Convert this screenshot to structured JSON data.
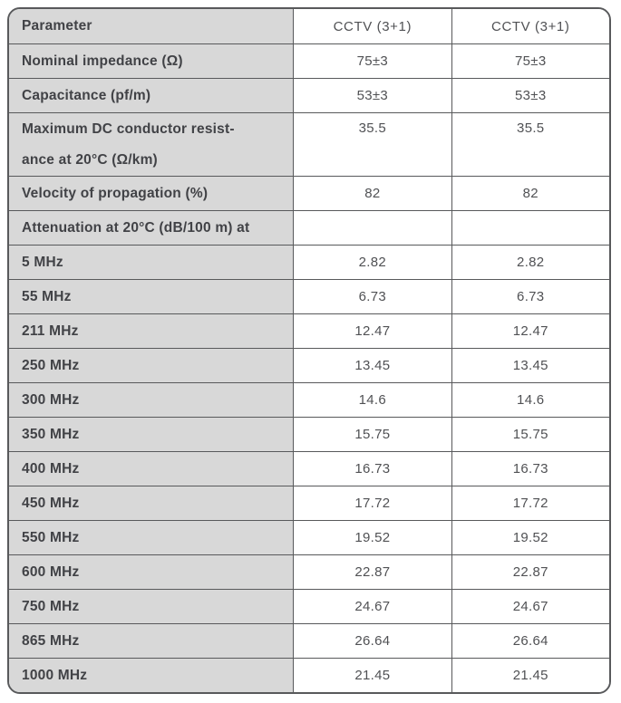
{
  "colors": {
    "border": "#58595b",
    "cell-gray": "#d8d8d8",
    "label-text": "#414246",
    "value-text": "#505154",
    "page-bg": "#ffffff"
  },
  "table": {
    "header": {
      "param": "Parameter",
      "col1": "CCTV (3+1)",
      "col2": "CCTV (3+1)"
    },
    "rows": [
      {
        "param": "Nominal impedance (Ω)",
        "values": [
          "75±3",
          "75±3"
        ],
        "tall": false
      },
      {
        "param": "Capacitance (pf/m)",
        "values": [
          "53±3",
          "53±3"
        ],
        "tall": false
      },
      {
        "param": "Maximum DC conductor resist-\nance at 20°C (Ω/km)",
        "values": [
          "35.5",
          "35.5"
        ],
        "tall": true
      },
      {
        "param": "Velocity of propagation (%)",
        "values": [
          "82",
          "82"
        ],
        "tall": false
      },
      {
        "param": "Attenuation at 20°C (dB/100 m) at",
        "values": [
          "",
          ""
        ],
        "tall": false
      },
      {
        "param": "5 MHz",
        "values": [
          "2.82",
          "2.82"
        ],
        "tall": false
      },
      {
        "param": "55 MHz",
        "values": [
          "6.73",
          "6.73"
        ],
        "tall": false
      },
      {
        "param": "211 MHz",
        "values": [
          "12.47",
          "12.47"
        ],
        "tall": false
      },
      {
        "param": "250 MHz",
        "values": [
          "13.45",
          "13.45"
        ],
        "tall": false
      },
      {
        "param": "300 MHz",
        "values": [
          "14.6",
          "14.6"
        ],
        "tall": false
      },
      {
        "param": "350 MHz",
        "values": [
          "15.75",
          "15.75"
        ],
        "tall": false
      },
      {
        "param": "400 MHz",
        "values": [
          "16.73",
          "16.73"
        ],
        "tall": false
      },
      {
        "param": "450 MHz",
        "values": [
          "17.72",
          "17.72"
        ],
        "tall": false
      },
      {
        "param": "550 MHz",
        "values": [
          "19.52",
          "19.52"
        ],
        "tall": false
      },
      {
        "param": "600 MHz",
        "values": [
          "22.87",
          "22.87"
        ],
        "tall": false
      },
      {
        "param": "750 MHz",
        "values": [
          "24.67",
          "24.67"
        ],
        "tall": false
      },
      {
        "param": "865 MHz",
        "values": [
          "26.64",
          "26.64"
        ],
        "tall": false
      },
      {
        "param": "1000 MHz",
        "values": [
          "21.45",
          "21.45"
        ],
        "tall": false
      }
    ]
  }
}
